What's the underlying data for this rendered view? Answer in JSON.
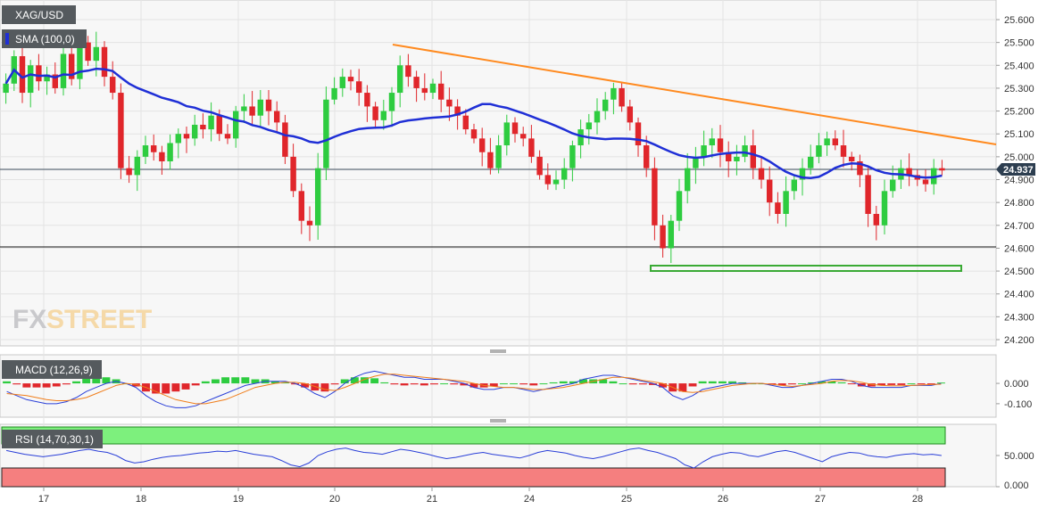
{
  "colors": {
    "bull": "#2ecc40",
    "bear": "#e0262b",
    "sma": "#1f2fd6",
    "trendline": "#ff8a1f",
    "support_box": "#3aaa35",
    "macd_line": "#2a3fd8",
    "signal_line": "#f07d1a",
    "rsi_line": "#2a3fd8",
    "rsi_overbought": "#7df07d",
    "rsi_oversold": "#f57f7f",
    "pane_bg": "#f7f7f7",
    "label_bg": "#555a5e"
  },
  "labels": {
    "symbol": "XAG/USD",
    "sma": "SMA (100,0)",
    "macd": "MACD (12,26,9)",
    "rsi": "RSI (14,70,30,1)",
    "price_tag": "24.937",
    "watermark_fx": "FX",
    "watermark_street": "STREET"
  },
  "chart_data": [
    {
      "type": "candlestick",
      "symbol": "XAG/USD",
      "overlays": [
        "SMA (100,0)",
        "descending trendline",
        "horizontal support 24.500",
        "horizontal line 24.600"
      ],
      "x_ticks": [
        "17",
        "18",
        "19",
        "20",
        "21",
        "24",
        "25",
        "26",
        "27",
        "28"
      ],
      "y_ticks": [
        "25.600",
        "25.500",
        "25.400",
        "25.300",
        "25.200",
        "25.100",
        "25.000",
        "24.900",
        "24.800",
        "24.700",
        "24.600",
        "24.500",
        "24.400",
        "24.300",
        "24.200"
      ],
      "ylim": [
        24.15,
        25.65
      ],
      "last_price": 24.937,
      "close_series": [
        25.32,
        25.44,
        25.28,
        25.4,
        25.33,
        25.36,
        25.3,
        25.45,
        25.34,
        25.5,
        25.42,
        25.48,
        25.35,
        25.28,
        24.95,
        24.92,
        25.0,
        25.05,
        25.02,
        24.98,
        25.06,
        25.1,
        25.08,
        25.14,
        25.12,
        25.18,
        25.1,
        25.08,
        25.2,
        25.22,
        25.18,
        25.25,
        25.2,
        25.15,
        25.0,
        24.85,
        24.72,
        24.7,
        24.95,
        25.25,
        25.3,
        25.35,
        25.33,
        25.28,
        25.22,
        25.16,
        25.2,
        25.28,
        25.4,
        25.35,
        25.3,
        25.28,
        25.32,
        25.25,
        25.22,
        25.18,
        25.12,
        25.08,
        25.02,
        24.95,
        25.05,
        25.15,
        25.1,
        25.08,
        25.0,
        24.92,
        24.88,
        24.9,
        24.95,
        25.05,
        25.12,
        25.15,
        25.2,
        25.25,
        25.3,
        25.22,
        25.15,
        25.05,
        24.95,
        24.7,
        24.6,
        24.72,
        24.85,
        24.95,
        25.0,
        25.05,
        25.08,
        25.02,
        24.98,
        25.0,
        25.05,
        24.95,
        24.9,
        24.8,
        24.75,
        24.85,
        24.9,
        24.95,
        25.0,
        25.05,
        25.08,
        25.05,
        25.0,
        24.98,
        24.92,
        24.75,
        24.7,
        24.85,
        24.9,
        24.95,
        24.92,
        24.9,
        24.88,
        24.95,
        24.94
      ]
    },
    {
      "type": "macd",
      "name": "MACD (12,26,9)",
      "y_ticks": [
        "0.000",
        "-0.100"
      ],
      "ylim": [
        -0.14,
        0.11
      ],
      "macd": [
        -0.04,
        -0.06,
        -0.08,
        -0.09,
        -0.1,
        -0.1,
        -0.09,
        -0.07,
        -0.04,
        -0.02,
        0.0,
        0.01,
        0.0,
        -0.02,
        -0.06,
        -0.09,
        -0.11,
        -0.12,
        -0.12,
        -0.11,
        -0.09,
        -0.07,
        -0.05,
        -0.03,
        -0.01,
        0.0,
        0.01,
        0.01,
        0.01,
        0.0,
        -0.02,
        -0.05,
        -0.07,
        -0.04,
        0.0,
        0.03,
        0.05,
        0.06,
        0.05,
        0.04,
        0.03,
        0.03,
        0.02,
        0.02,
        0.02,
        0.01,
        0.0,
        -0.02,
        -0.03,
        -0.03,
        -0.02,
        -0.02,
        -0.03,
        -0.04,
        -0.03,
        -0.02,
        -0.01,
        0.0,
        0.02,
        0.03,
        0.04,
        0.04,
        0.03,
        0.02,
        0.01,
        0.0,
        -0.02,
        -0.06,
        -0.08,
        -0.06,
        -0.03,
        -0.02,
        -0.01,
        0.0,
        0.0,
        0.0,
        0.0,
        -0.01,
        -0.02,
        -0.02,
        -0.01,
        0.0,
        0.01,
        0.02,
        0.02,
        0.01,
        -0.01,
        -0.02,
        -0.02,
        -0.02,
        -0.02,
        -0.01,
        -0.01,
        -0.01,
        0.0
      ],
      "signal": [
        -0.05,
        -0.055,
        -0.06,
        -0.07,
        -0.08,
        -0.085,
        -0.085,
        -0.08,
        -0.07,
        -0.05,
        -0.03,
        -0.01,
        0.0,
        -0.005,
        -0.02,
        -0.04,
        -0.06,
        -0.08,
        -0.09,
        -0.1,
        -0.1,
        -0.09,
        -0.08,
        -0.06,
        -0.04,
        -0.02,
        -0.01,
        0.0,
        0.005,
        0.005,
        0.0,
        -0.015,
        -0.03,
        -0.035,
        -0.02,
        0.0,
        0.02,
        0.035,
        0.045,
        0.045,
        0.04,
        0.035,
        0.03,
        0.025,
        0.02,
        0.015,
        0.01,
        0.0,
        -0.01,
        -0.015,
        -0.02,
        -0.02,
        -0.025,
        -0.03,
        -0.03,
        -0.025,
        -0.02,
        -0.01,
        0.0,
        0.01,
        0.02,
        0.03,
        0.03,
        0.025,
        0.015,
        0.008,
        0.0,
        -0.02,
        -0.04,
        -0.045,
        -0.04,
        -0.03,
        -0.02,
        -0.01,
        -0.005,
        0.0,
        0.0,
        -0.005,
        -0.01,
        -0.015,
        -0.01,
        -0.005,
        0.0,
        0.01,
        0.015,
        0.012,
        0.005,
        -0.005,
        -0.01,
        -0.012,
        -0.012,
        -0.01,
        -0.008,
        -0.006,
        -0.004
      ]
    },
    {
      "type": "rsi",
      "name": "RSI (14,70,30,1)",
      "y_ticks": [
        "50.000",
        "0.000"
      ],
      "ylim": [
        0,
        100
      ],
      "values": [
        58,
        55,
        52,
        50,
        48,
        50,
        52,
        55,
        58,
        60,
        57,
        55,
        50,
        42,
        38,
        40,
        44,
        47,
        49,
        50,
        52,
        54,
        55,
        57,
        56,
        58,
        55,
        52,
        50,
        48,
        42,
        35,
        32,
        38,
        50,
        56,
        60,
        62,
        58,
        55,
        54,
        52,
        56,
        60,
        58,
        55,
        52,
        48,
        45,
        47,
        50,
        53,
        55,
        52,
        50,
        48,
        46,
        50,
        55,
        58,
        56,
        54,
        50,
        47,
        45,
        48,
        52,
        56,
        60,
        62,
        58,
        55,
        50,
        45,
        35,
        30,
        40,
        48,
        52,
        55,
        54,
        50,
        48,
        52,
        56,
        58,
        55,
        50,
        45,
        40,
        48,
        52,
        55,
        54,
        50,
        48,
        47,
        50,
        52,
        53,
        51,
        52,
        50
      ]
    }
  ]
}
